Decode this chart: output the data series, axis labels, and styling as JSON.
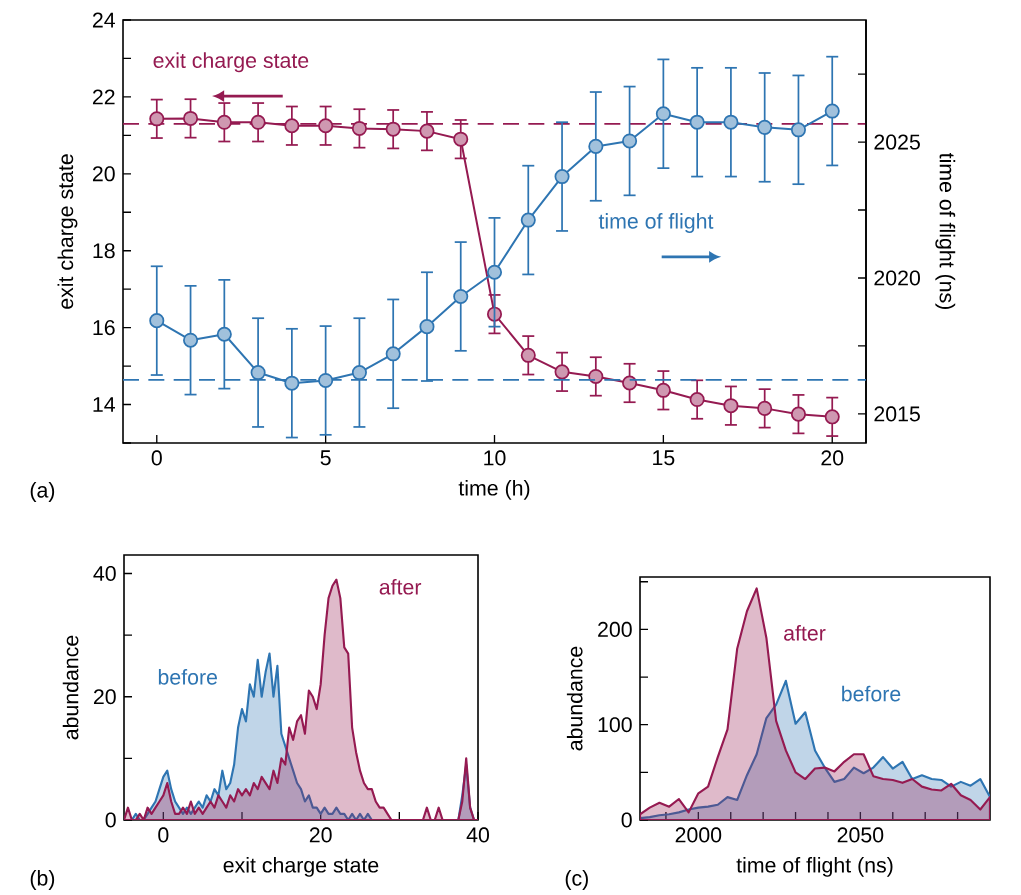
{
  "chart_data": [
    {
      "type": "line",
      "xlabel": "time (h)",
      "ylabel": "exit charge state",
      "y2label": "time of flight (ns)",
      "x": [
        0,
        1,
        2,
        3,
        4,
        5,
        6,
        7,
        8,
        9,
        10,
        11,
        12,
        13,
        14,
        15,
        16,
        17,
        18,
        19,
        20
      ],
      "series": [
        {
          "name": "exit charge state",
          "color": "#951a51",
          "axis": "y",
          "values": [
            21.43,
            21.44,
            21.34,
            21.34,
            21.25,
            21.25,
            21.18,
            21.16,
            21.11,
            20.9,
            16.35,
            15.28,
            14.85,
            14.73,
            14.56,
            14.37,
            14.13,
            13.97,
            13.9,
            13.75,
            13.68
          ],
          "errors": [
            0.5,
            0.5,
            0.5,
            0.5,
            0.5,
            0.5,
            0.5,
            0.5,
            0.5,
            0.5,
            0.5,
            0.5,
            0.5,
            0.5,
            0.5,
            0.5,
            0.5,
            0.5,
            0.5,
            0.5,
            0.5
          ]
        },
        {
          "name": "time of flight",
          "color": "#2e75b2",
          "axis": "y2",
          "values": [
            2018.43,
            2017.71,
            2017.93,
            2016.52,
            2016.13,
            2016.23,
            2016.52,
            2017.21,
            2018.21,
            2019.32,
            2020.21,
            2022.13,
            2023.73,
            2024.84,
            2025.04,
            2026.04,
            2025.73,
            2025.73,
            2025.54,
            2025.45,
            2026.14
          ],
          "errors": [
            2,
            2,
            2,
            2,
            2,
            2,
            2,
            2,
            2,
            2,
            2,
            2,
            2,
            2,
            2,
            2,
            2,
            2,
            2,
            2,
            2
          ]
        }
      ],
      "xlim": [
        -1,
        21
      ],
      "xticks": [
        0,
        5,
        10,
        15,
        20
      ],
      "ylim": [
        13,
        24
      ],
      "yticks": [
        {
          "value": 13,
          "label": null
        },
        14,
        {
          "value": 15,
          "label": null
        },
        16,
        {
          "value": 17,
          "label": null
        },
        18,
        {
          "value": 19,
          "label": null
        },
        20,
        {
          "value": 21,
          "label": null
        },
        22,
        {
          "value": 23,
          "label": null
        },
        24
      ],
      "y2lim": [
        2013.93,
        2029.49
      ],
      "y2ticks": [
        2015,
        {
          "value": 2017.5,
          "label": null
        },
        2020,
        {
          "value": 2022.5,
          "label": null
        },
        2025,
        {
          "value": 2027.5,
          "label": null
        }
      ],
      "ref_lines": [
        {
          "axis": "y",
          "value": 21.3,
          "color": "#951a51",
          "line_style": "dashed"
        },
        {
          "axis": "y2",
          "value": 2016.25,
          "color": "#2e75b2",
          "line_style": "dashed"
        }
      ],
      "marker": "circle",
      "line_style": "solid",
      "annotations": [
        "(a)"
      ]
    },
    {
      "type": "area",
      "xlabel": "exit charge state",
      "ylabel": "abundance",
      "x": [
        -5,
        -4.5,
        -4,
        -3.5,
        -3,
        -2.5,
        -2,
        -1.5,
        -1,
        -0.5,
        0,
        0.5,
        1,
        1.5,
        2,
        2.5,
        3,
        3.5,
        4,
        4.5,
        5,
        5.5,
        6,
        6.5,
        7,
        7.5,
        8,
        8.5,
        9,
        9.5,
        10,
        10.5,
        11,
        11.5,
        12,
        12.5,
        13,
        13.5,
        14,
        14.5,
        15,
        15.5,
        16,
        16.5,
        17,
        17.5,
        18,
        18.5,
        19,
        19.5,
        20,
        20.5,
        21,
        21.5,
        22,
        22.5,
        23,
        23.5,
        24,
        24.5,
        25,
        25.5,
        26,
        26.5,
        27,
        27.5,
        28,
        28.5,
        29,
        29.5,
        30,
        30.5,
        31,
        31.5,
        32,
        32.5,
        33,
        33.5,
        34,
        34.5,
        35,
        35.5,
        36,
        36.5,
        37,
        37.5,
        38,
        38.5,
        39,
        39.5,
        40
      ],
      "series": [
        {
          "name": "before",
          "color": "#2e75b2",
          "values": [
            0,
            0,
            0,
            1,
            0,
            0,
            1,
            2,
            3,
            5,
            7,
            8,
            5,
            3,
            2,
            1,
            2,
            1,
            2,
            3,
            2,
            4,
            3,
            5,
            4,
            8,
            5,
            6,
            9,
            15,
            18,
            16,
            22,
            20,
            26,
            20,
            24,
            27,
            20,
            25,
            14,
            12,
            10,
            8,
            6,
            5,
            3,
            4,
            2,
            2,
            1,
            2,
            1,
            1,
            2,
            1,
            1,
            0,
            1,
            0,
            1,
            0,
            1,
            0,
            0,
            0,
            0,
            0,
            0,
            0,
            0,
            0,
            0,
            0,
            0,
            0,
            0,
            0,
            0,
            0,
            0,
            0,
            0,
            0,
            0,
            0,
            4,
            9,
            2,
            0,
            0
          ]
        },
        {
          "name": "after",
          "color": "#951a51",
          "values": [
            0,
            2,
            0,
            0,
            1,
            0,
            2,
            1,
            2,
            3,
            4,
            6,
            3,
            1,
            1,
            2,
            1,
            3,
            1,
            2,
            1,
            2,
            3,
            2,
            4,
            3,
            2,
            4,
            3,
            5,
            4,
            5,
            4,
            6,
            5,
            7,
            6,
            5,
            8,
            6,
            10,
            9,
            15,
            13,
            16,
            17,
            14,
            21,
            20,
            18,
            22,
            30,
            36,
            38,
            39,
            36,
            28,
            27,
            15,
            11,
            8,
            6,
            5,
            5,
            3,
            2,
            2,
            1,
            0,
            0,
            0,
            0,
            0,
            0,
            0,
            0,
            0,
            2,
            0,
            0,
            2,
            0,
            0,
            0,
            0,
            0,
            3,
            10,
            2,
            0,
            0
          ]
        }
      ],
      "xlim": [
        -5,
        40
      ],
      "xticks": [
        0,
        {
          "value": 10,
          "label": null
        },
        20,
        {
          "value": 30,
          "label": null
        },
        40
      ],
      "ylim": [
        0,
        43
      ],
      "yticks": [
        0,
        {
          "value": 10,
          "label": null
        },
        20,
        {
          "value": 30,
          "label": null
        },
        40
      ],
      "annotations": [
        "(b)"
      ]
    },
    {
      "type": "area",
      "xlabel": "time of flight (ns)",
      "ylabel": "abundance",
      "x": [
        1982,
        1985,
        1988,
        1991,
        1994,
        1997,
        2000,
        2003,
        2006,
        2009,
        2012,
        2015,
        2018,
        2021,
        2024,
        2027,
        2030,
        2033,
        2036,
        2039,
        2042,
        2045,
        2048,
        2051,
        2054,
        2057,
        2060,
        2063,
        2066,
        2069,
        2072,
        2075,
        2078,
        2081,
        2084,
        2087,
        2090
      ],
      "series": [
        {
          "name": "before",
          "color": "#2e75b2",
          "values": [
            2,
            3,
            5,
            6,
            8,
            11,
            13,
            14,
            16,
            24,
            21,
            47,
            69,
            107,
            121,
            146,
            101,
            113,
            73,
            55,
            40,
            43,
            55,
            49,
            55,
            66,
            54,
            61,
            43,
            47,
            43,
            42,
            35,
            40,
            36,
            43,
            24
          ]
        },
        {
          "name": "after",
          "color": "#951a51",
          "values": [
            6,
            13,
            18,
            14,
            22,
            8,
            28,
            35,
            66,
            95,
            180,
            219,
            243,
            191,
            104,
            73,
            50,
            43,
            54,
            55,
            51,
            61,
            69,
            69,
            46,
            43,
            42,
            39,
            43,
            35,
            32,
            31,
            38,
            26,
            21,
            11,
            24
          ]
        }
      ],
      "xlim": [
        1982,
        2090
      ],
      "xticks": [
        {
          "value": 1990,
          "label": null
        },
        2000,
        {
          "value": 2010,
          "label": null
        },
        {
          "value": 2020,
          "label": null
        },
        {
          "value": 2030,
          "label": null
        },
        {
          "value": 2040,
          "label": null
        },
        2050,
        {
          "value": 2060,
          "label": null
        },
        {
          "value": 2070,
          "label": null
        },
        {
          "value": 2080,
          "label": null
        }
      ],
      "ylim": [
        0,
        255
      ],
      "yticks": [
        0,
        {
          "value": 50,
          "label": null
        },
        100,
        {
          "value": 150,
          "label": null
        },
        200,
        {
          "value": 250,
          "label": null
        }
      ],
      "annotations": [
        "(c)"
      ]
    }
  ]
}
